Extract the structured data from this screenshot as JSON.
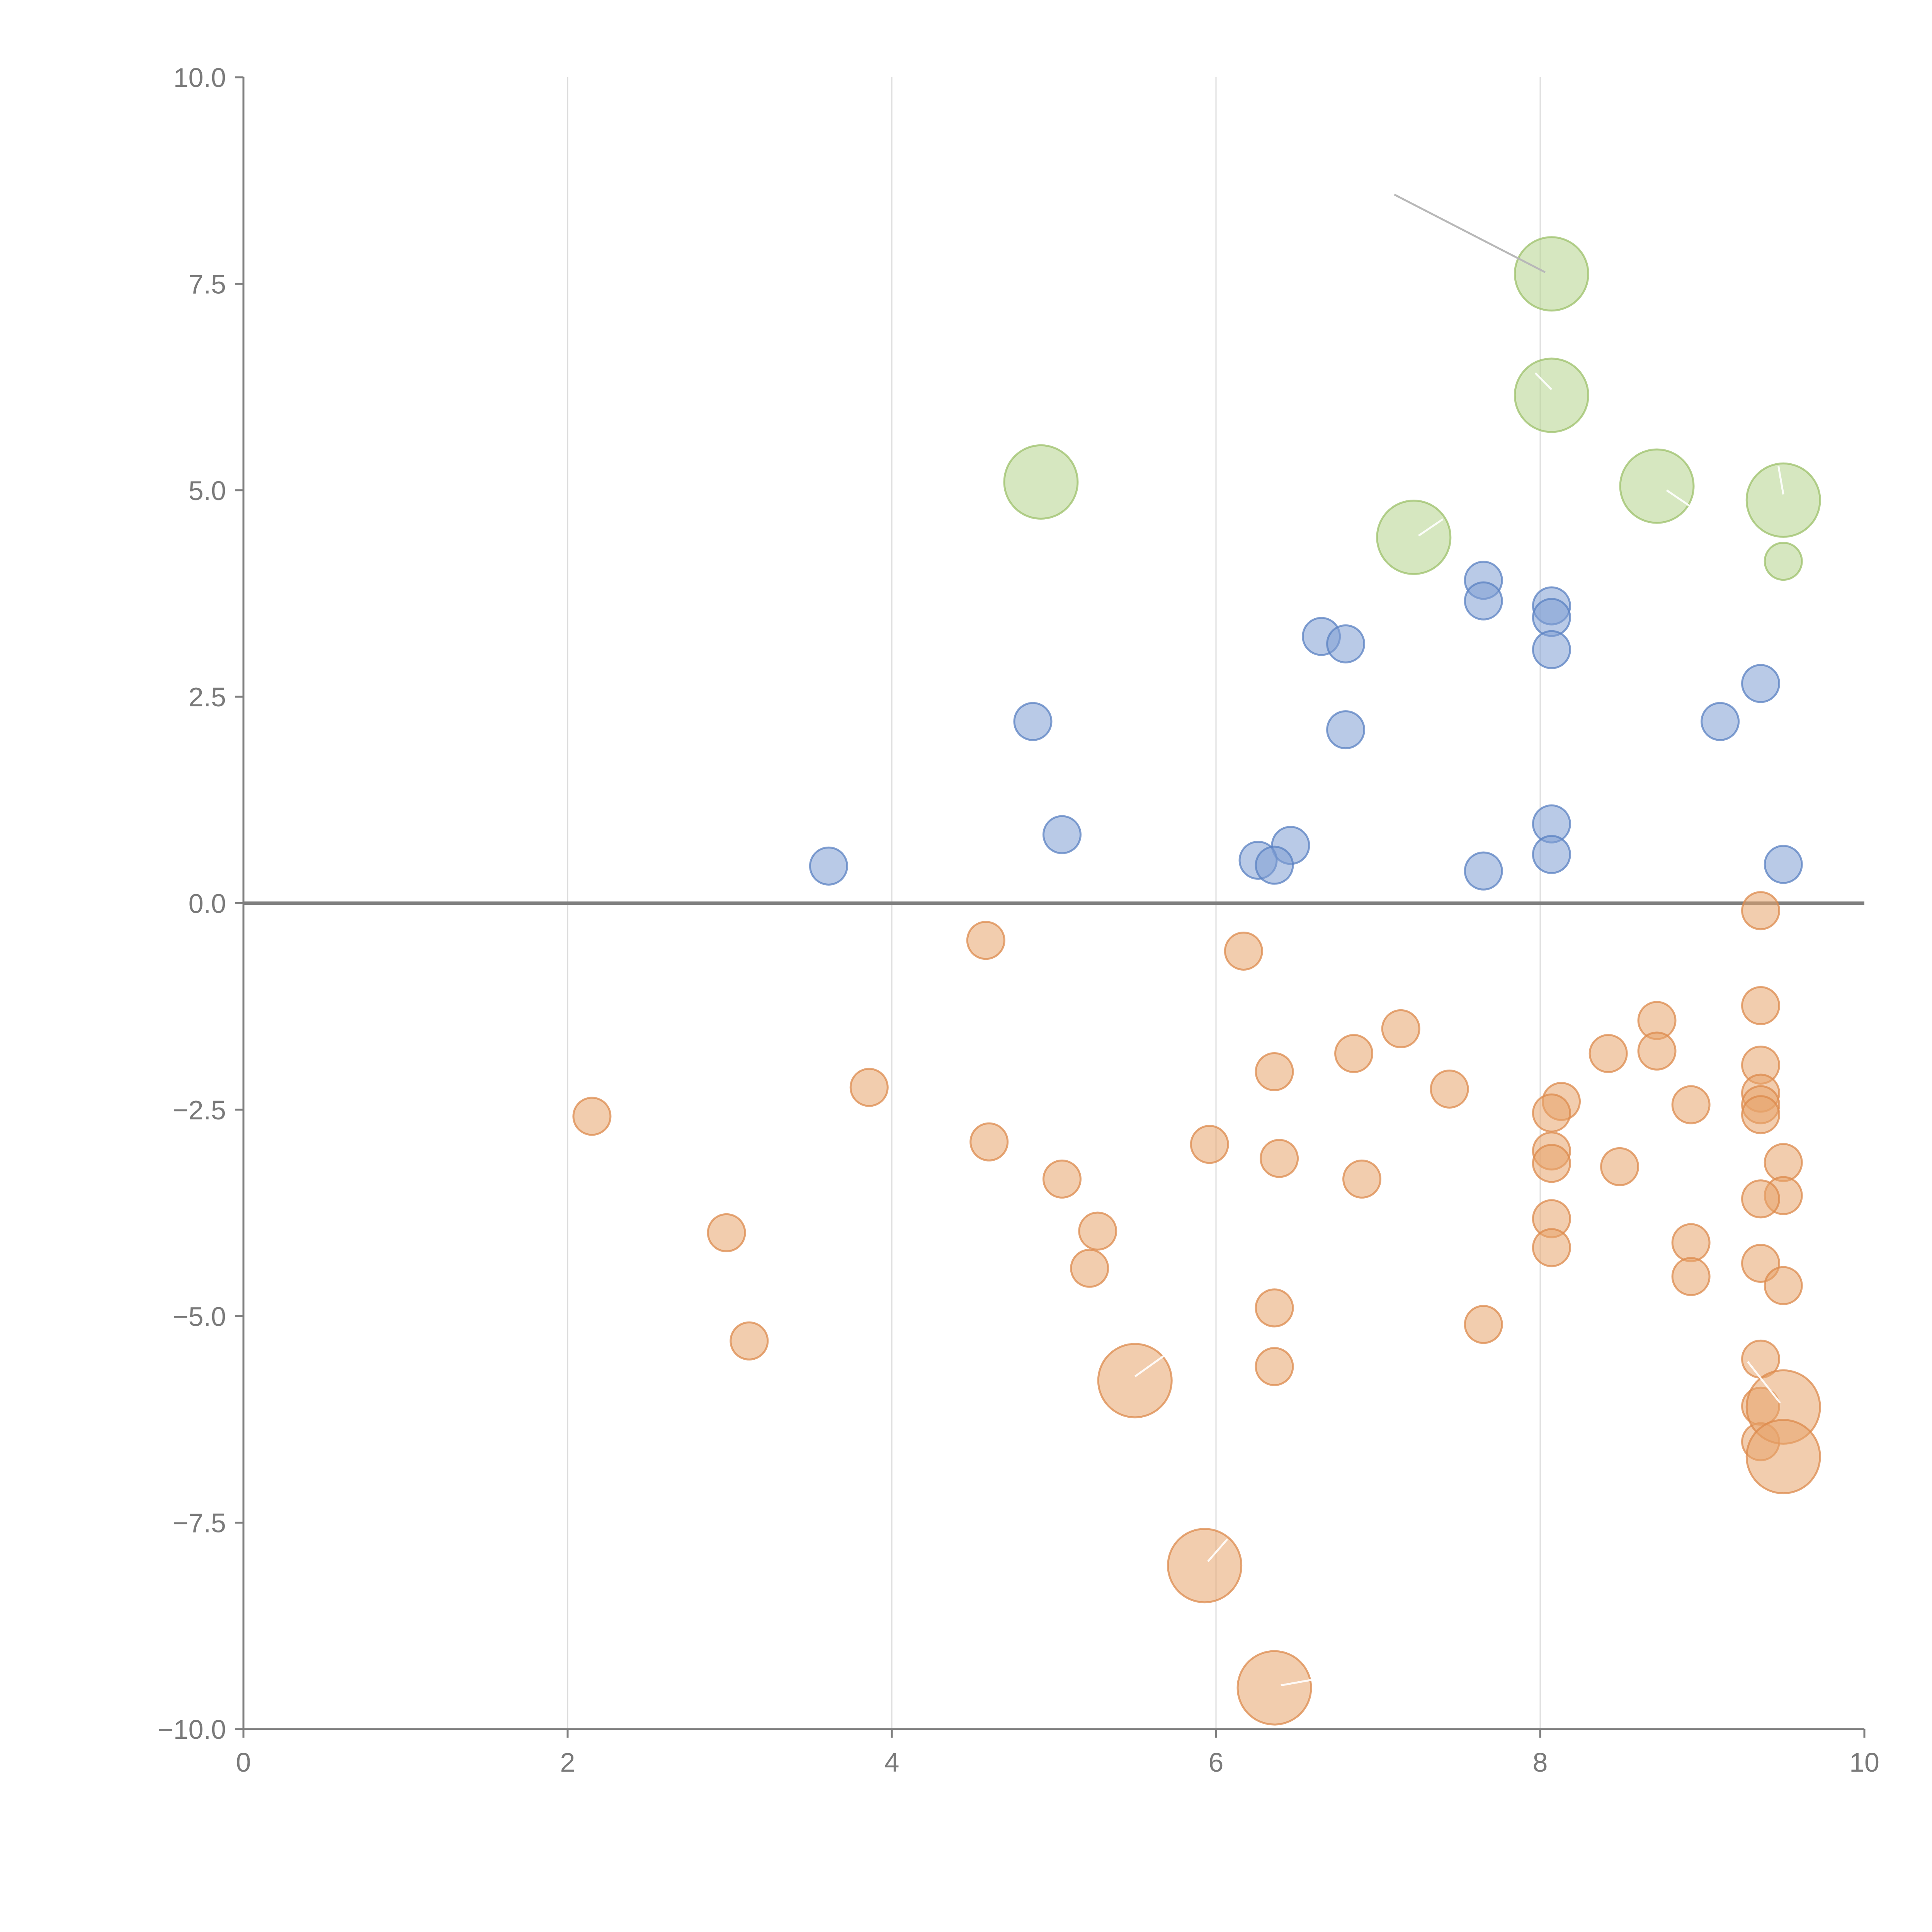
{
  "chart_data": {
    "type": "scatter",
    "title": "",
    "xlabel": "",
    "ylabel": "",
    "xlim": [
      0,
      10
    ],
    "ylim": [
      -10,
      10
    ],
    "grid": {
      "x": true,
      "y": false
    },
    "zero_line": 0,
    "x_ticks": [
      "0",
      "2",
      "4",
      "6",
      "8",
      "10"
    ],
    "y_ticks": [
      "10.0",
      "7.5",
      "5.0",
      "2.5",
      "0.0",
      "−2.5",
      "−5.0",
      "−7.5",
      "−10.0"
    ],
    "colors": {
      "green": "#b5d38c",
      "blue": "#7f9fd4",
      "orange": "#e8a46c",
      "green_stroke": "#9cc06a",
      "blue_stroke": "#5a80c2",
      "orange_stroke": "#dc8a4c",
      "leader_grey": "#b8b8b8",
      "leader_white": "#ffffff"
    },
    "series": [
      {
        "name": "green",
        "points": [
          {
            "x": 8.07,
            "y": 7.62,
            "size": "large"
          },
          {
            "x": 8.07,
            "y": 6.15,
            "size": "large"
          },
          {
            "x": 4.92,
            "y": 5.1,
            "size": "large"
          },
          {
            "x": 8.72,
            "y": 5.05,
            "size": "large"
          },
          {
            "x": 9.5,
            "y": 4.88,
            "size": "large"
          },
          {
            "x": 7.22,
            "y": 4.43,
            "size": "large"
          },
          {
            "x": 9.5,
            "y": 4.14,
            "size": "small"
          }
        ]
      },
      {
        "name": "blue",
        "points": [
          {
            "x": 7.65,
            "y": 3.91
          },
          {
            "x": 7.65,
            "y": 3.66
          },
          {
            "x": 8.07,
            "y": 3.6
          },
          {
            "x": 8.07,
            "y": 3.46
          },
          {
            "x": 6.65,
            "y": 3.23
          },
          {
            "x": 6.8,
            "y": 3.14
          },
          {
            "x": 8.07,
            "y": 3.07
          },
          {
            "x": 9.36,
            "y": 2.66
          },
          {
            "x": 4.87,
            "y": 2.2
          },
          {
            "x": 9.11,
            "y": 2.2
          },
          {
            "x": 6.8,
            "y": 2.1
          },
          {
            "x": 8.07,
            "y": 0.96
          },
          {
            "x": 5.05,
            "y": 0.83
          },
          {
            "x": 6.46,
            "y": 0.7
          },
          {
            "x": 8.07,
            "y": 0.59
          },
          {
            "x": 6.26,
            "y": 0.52
          },
          {
            "x": 3.61,
            "y": 0.45
          },
          {
            "x": 6.36,
            "y": 0.46
          },
          {
            "x": 9.5,
            "y": 0.47
          },
          {
            "x": 7.65,
            "y": 0.39
          }
        ]
      },
      {
        "name": "orange",
        "points": [
          {
            "x": 9.36,
            "y": -0.09
          },
          {
            "x": 4.58,
            "y": -0.45
          },
          {
            "x": 6.17,
            "y": -0.58
          },
          {
            "x": 9.36,
            "y": -1.24
          },
          {
            "x": 8.72,
            "y": -1.42
          },
          {
            "x": 7.14,
            "y": -1.52
          },
          {
            "x": 8.72,
            "y": -1.79
          },
          {
            "x": 8.42,
            "y": -1.82
          },
          {
            "x": 6.85,
            "y": -1.82
          },
          {
            "x": 9.36,
            "y": -1.96
          },
          {
            "x": 6.36,
            "y": -2.04
          },
          {
            "x": 3.86,
            "y": -2.23
          },
          {
            "x": 7.44,
            "y": -2.25
          },
          {
            "x": 9.36,
            "y": -2.3
          },
          {
            "x": 8.13,
            "y": -2.4
          },
          {
            "x": 9.36,
            "y": -2.44
          },
          {
            "x": 8.93,
            "y": -2.44
          },
          {
            "x": 8.07,
            "y": -2.54
          },
          {
            "x": 9.36,
            "y": -2.56
          },
          {
            "x": 2.15,
            "y": -2.58
          },
          {
            "x": 4.6,
            "y": -2.89
          },
          {
            "x": 5.96,
            "y": -2.92
          },
          {
            "x": 8.07,
            "y": -3.0
          },
          {
            "x": 6.39,
            "y": -3.09
          },
          {
            "x": 9.5,
            "y": -3.14
          },
          {
            "x": 8.07,
            "y": -3.15
          },
          {
            "x": 8.49,
            "y": -3.19
          },
          {
            "x": 5.05,
            "y": -3.34
          },
          {
            "x": 6.9,
            "y": -3.34
          },
          {
            "x": 9.5,
            "y": -3.54
          },
          {
            "x": 9.36,
            "y": -3.58
          },
          {
            "x": 8.07,
            "y": -3.82
          },
          {
            "x": 5.27,
            "y": -3.97
          },
          {
            "x": 2.98,
            "y": -3.99
          },
          {
            "x": 8.93,
            "y": -4.11
          },
          {
            "x": 8.07,
            "y": -4.17
          },
          {
            "x": 9.36,
            "y": -4.36
          },
          {
            "x": 5.22,
            "y": -4.42
          },
          {
            "x": 8.93,
            "y": -4.52
          },
          {
            "x": 9.5,
            "y": -4.63
          },
          {
            "x": 6.36,
            "y": -4.9
          },
          {
            "x": 7.65,
            "y": -5.1
          },
          {
            "x": 3.12,
            "y": -5.3
          },
          {
            "x": 9.36,
            "y": -5.52
          },
          {
            "x": 6.36,
            "y": -5.61
          },
          {
            "x": 9.36,
            "y": -6.09
          },
          {
            "x": 9.36,
            "y": -6.52
          },
          {
            "x": 5.5,
            "y": -5.78,
            "size": "large"
          },
          {
            "x": 9.5,
            "y": -6.1,
            "size": "large"
          },
          {
            "x": 9.5,
            "y": -6.7,
            "size": "large"
          },
          {
            "x": 5.93,
            "y": -8.02,
            "size": "large"
          },
          {
            "x": 6.36,
            "y": -9.5,
            "size": "large"
          }
        ]
      }
    ],
    "leader_lines": [
      {
        "x1": 7.1,
        "y1": 8.58,
        "x2": 8.03,
        "y2": 7.64,
        "color": "grey"
      },
      {
        "x1": 7.97,
        "y1": 6.42,
        "x2": 8.07,
        "y2": 6.22,
        "color": "white"
      },
      {
        "x1": 8.78,
        "y1": 5.0,
        "x2": 8.93,
        "y2": 4.8,
        "color": "white"
      },
      {
        "x1": 9.47,
        "y1": 5.29,
        "x2": 9.5,
        "y2": 4.95,
        "color": "white"
      },
      {
        "x1": 7.25,
        "y1": 4.45,
        "x2": 7.4,
        "y2": 4.65,
        "color": "white"
      },
      {
        "x1": 5.5,
        "y1": -5.73,
        "x2": 5.7,
        "y2": -5.45,
        "color": "white"
      },
      {
        "x1": 9.48,
        "y1": -6.05,
        "x2": 9.28,
        "y2": -5.55,
        "color": "white"
      },
      {
        "x1": 5.95,
        "y1": -7.97,
        "x2": 6.07,
        "y2": -7.7,
        "color": "white"
      },
      {
        "x1": 6.4,
        "y1": -9.47,
        "x2": 6.6,
        "y2": -9.4,
        "color": "white"
      }
    ]
  }
}
